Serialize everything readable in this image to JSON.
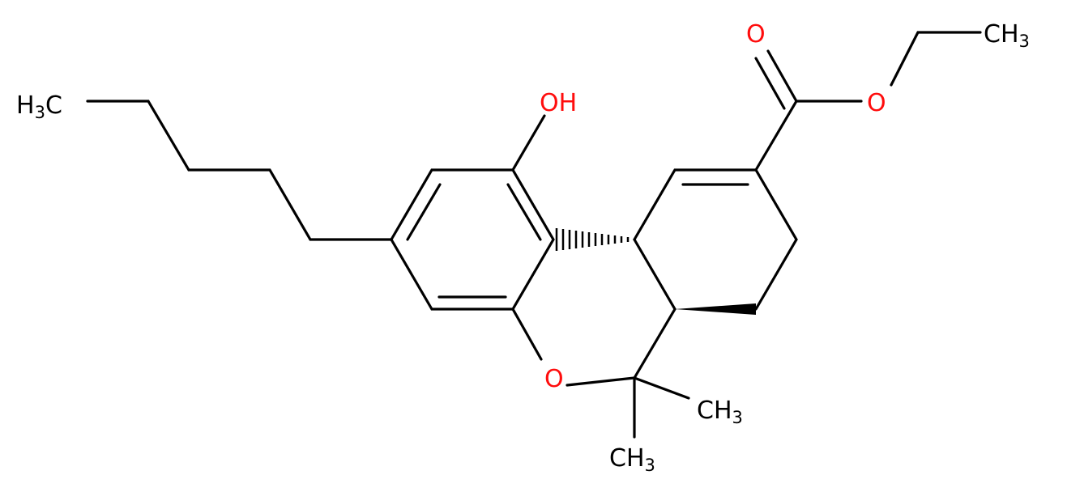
{
  "labels": {
    "methyl_left": {
      "a": "H",
      "sub": "3",
      "b": "C"
    },
    "hydroxyl": "OH",
    "ring_oxygen": "O",
    "carbonyl_oxygen": "O",
    "ester_oxygen": "O",
    "methyl_ester": {
      "a": "CH",
      "sub": "3"
    },
    "methyl_gem_1": {
      "a": "CH",
      "sub": "3"
    },
    "methyl_gem_2": {
      "a": "CH",
      "sub": "3"
    }
  }
}
